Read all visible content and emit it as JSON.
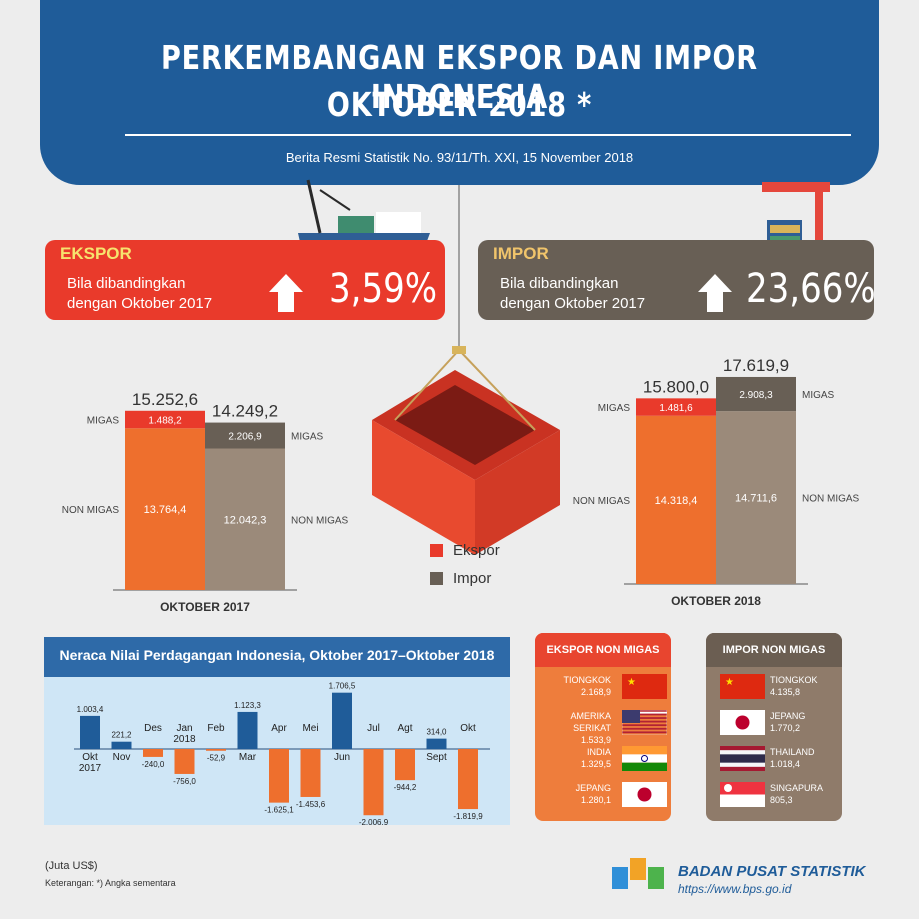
{
  "header": {
    "title_line1": "PERKEMBANGAN EKSPOR DAN IMPOR INDONESIA",
    "title_line2": "OKTOBER 2018 *",
    "subtitle": "Berita Resmi Statistik No. 93/11/Th. XXI, 15 November 2018"
  },
  "ekspor_banner": {
    "label": "EKSPOR",
    "text": "Bila dibandingkan dengan Oktober 2017",
    "value": "3,59%"
  },
  "impor_banner": {
    "label": "IMPOR",
    "text": "Bila dibandingkan dengan Oktober 2017",
    "value": "23,66%"
  },
  "legend": {
    "ekspor": "Ekspor",
    "impor": "Impor"
  },
  "colors": {
    "ekspor_main": "#ee6f2d",
    "ekspor_migas": "#e93a2b",
    "impor_main": "#9b8a7a",
    "impor_migas": "#685f55",
    "blue": "#1f5c99"
  },
  "chart_data": [
    {
      "type": "bar",
      "title": "OKTOBER 2017",
      "categories": [
        "Ekspor",
        "Impor"
      ],
      "stack_labels": [
        "MIGAS",
        "NON MIGAS"
      ],
      "series": [
        {
          "name": "Ekspor",
          "migas": "1.488,2",
          "non_migas": "13.764,4",
          "total": "15.252,6",
          "migas_value": 1488.2,
          "non_migas_value": 13764.4
        },
        {
          "name": "Impor",
          "migas": "2.206,9",
          "non_migas": "12.042,3",
          "total": "14.249,2",
          "migas_value": 2206.9,
          "non_migas_value": 12042.3
        }
      ]
    },
    {
      "type": "bar",
      "title": "OKTOBER 2018",
      "categories": [
        "Ekspor",
        "Impor"
      ],
      "stack_labels": [
        "MIGAS",
        "NON MIGAS"
      ],
      "series": [
        {
          "name": "Ekspor",
          "migas": "1.481,6",
          "non_migas": "14.318,4",
          "total": "15.800,0",
          "migas_value": 1481.6,
          "non_migas_value": 14318.4
        },
        {
          "name": "Impor",
          "migas": "2.908,3",
          "non_migas": "14.711,6",
          "total": "17.619,9",
          "migas_value": 2908.3,
          "non_migas_value": 14711.6
        }
      ]
    },
    {
      "type": "bar",
      "title": "Neraca Nilai Perdagangan Indonesia, Oktober 2017–Oktober 2018",
      "categories": [
        "Okt 2017",
        "Nov",
        "Des",
        "Jan 2018",
        "Feb",
        "Mar",
        "Apr",
        "Mei",
        "Jun",
        "Jul",
        "Agt",
        "Sept",
        "Okt"
      ],
      "values": [
        1003.4,
        221.2,
        -240.0,
        -756.0,
        -52.9,
        1123.3,
        -1625.1,
        -1453.6,
        1706.5,
        -2006.9,
        -944.2,
        314.0,
        -1819.9
      ],
      "value_labels": [
        "1.003,4",
        "221,2",
        "-240,0",
        "-756,0",
        "-52,9",
        "1.123,3",
        "-1.625,1",
        "-1.453,6",
        "1.706,5",
        "-2.006,9",
        "-944,2",
        "314,0",
        "-1.819,9"
      ]
    }
  ],
  "ekspor_non_migas": {
    "title": "EKSPOR NON MIGAS",
    "items": [
      {
        "country": "TIONGKOK",
        "value": "2.168,9",
        "flag": "china-flag"
      },
      {
        "country": "AMERIKA SERIKAT",
        "value": "1.533,9",
        "flag": "usa-flag"
      },
      {
        "country": "INDIA",
        "value": "1.329,5",
        "flag": "india-flag"
      },
      {
        "country": "JEPANG",
        "value": "1.280,1",
        "flag": "japan-flag"
      }
    ]
  },
  "impor_non_migas": {
    "title": "IMPOR NON MIGAS",
    "items": [
      {
        "country": "TIONGKOK",
        "value": "4.135,8",
        "flag": "china-flag"
      },
      {
        "country": "JEPANG",
        "value": "1.770,2",
        "flag": "japan-flag"
      },
      {
        "country": "THAILAND",
        "value": "1.018,4",
        "flag": "thailand-flag"
      },
      {
        "country": "SINGAPURA",
        "value": "805,3",
        "flag": "singapore-flag"
      }
    ]
  },
  "footer": {
    "unit": "(Juta US$)",
    "note": "Keterangan: *) Angka sementara",
    "org": "BADAN PUSAT STATISTIK",
    "url": "https://www.bps.go.id"
  }
}
